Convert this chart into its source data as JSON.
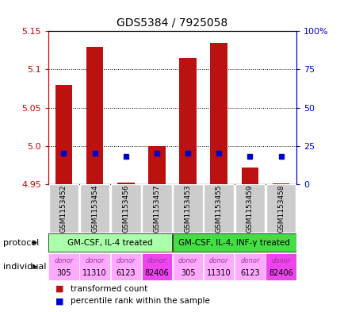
{
  "title": "GDS5384 / 7925058",
  "samples": [
    "GSM1153452",
    "GSM1153454",
    "GSM1153456",
    "GSM1153457",
    "GSM1153453",
    "GSM1153455",
    "GSM1153459",
    "GSM1153458"
  ],
  "bar_values": [
    5.08,
    5.13,
    4.952,
    5.0,
    5.115,
    5.135,
    4.972,
    4.951
  ],
  "bar_base": 4.95,
  "percentile_values": [
    20,
    20,
    18,
    20,
    20,
    20,
    18,
    18
  ],
  "ylim": [
    4.95,
    5.15
  ],
  "yticks_left": [
    4.95,
    5.0,
    5.05,
    5.1,
    5.15
  ],
  "yticks_right": [
    0,
    25,
    50,
    75,
    100
  ],
  "ytick_labels_right": [
    "0",
    "25",
    "50",
    "75",
    "100%"
  ],
  "left_axis_color": "#cc0000",
  "right_axis_color": "#0000cc",
  "bar_color": "#bb1111",
  "dot_color": "#0000cc",
  "plot_bg_color": "#ffffff",
  "fig_bg_color": "#ffffff",
  "grid_color": "#000000",
  "sample_box_color": "#cccccc",
  "protocol_groups": [
    {
      "label": "GM-CSF, IL-4 treated",
      "start": 0,
      "end": 3,
      "color": "#aaffaa"
    },
    {
      "label": "GM-CSF, IL-4, INF-γ treated",
      "start": 4,
      "end": 7,
      "color": "#44dd44"
    }
  ],
  "individuals": [
    {
      "label": "donor\n305",
      "col": 0,
      "color": "#ffaaff"
    },
    {
      "label": "donor\n11310",
      "col": 1,
      "color": "#ffaaff"
    },
    {
      "label": "donor\n6123",
      "col": 2,
      "color": "#ffaaff"
    },
    {
      "label": "donor\n82406",
      "col": 3,
      "color": "#ee44ee"
    },
    {
      "label": "donor\n305",
      "col": 4,
      "color": "#ffaaff"
    },
    {
      "label": "donor\n11310",
      "col": 5,
      "color": "#ffaaff"
    },
    {
      "label": "donor\n6123",
      "col": 6,
      "color": "#ffaaff"
    },
    {
      "label": "donor\n82406",
      "col": 7,
      "color": "#ee44ee"
    }
  ]
}
